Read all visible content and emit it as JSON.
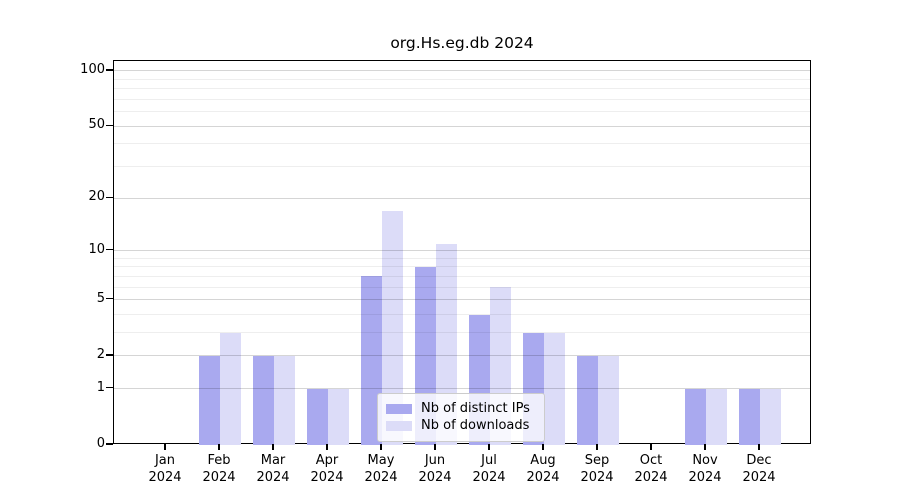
{
  "title": "org.Hs.eg.db 2024",
  "chart_data": {
    "type": "bar",
    "title": "org.Hs.eg.db 2024",
    "categories": [
      "Jan 2024",
      "Feb 2024",
      "Mar 2024",
      "Apr 2024",
      "May 2024",
      "Jun 2024",
      "Jul 2024",
      "Aug 2024",
      "Sep 2024",
      "Oct 2024",
      "Nov 2024",
      "Dec 2024"
    ],
    "series": [
      {
        "name": "Nb of distinct IPs",
        "color": "#a9a9ef",
        "values": [
          0,
          2,
          2,
          1,
          7,
          8,
          4,
          3,
          2,
          0,
          1,
          1
        ]
      },
      {
        "name": "Nb of downloads",
        "color": "#dcdcf8",
        "values": [
          0,
          3,
          2,
          1,
          17,
          11,
          6,
          3,
          2,
          0,
          1,
          1
        ]
      }
    ],
    "xlabel": "",
    "ylabel": "",
    "yscale": "log1p",
    "ylim": [
      0,
      113
    ],
    "yticks": [
      0,
      1,
      2,
      5,
      10,
      20,
      50,
      100
    ],
    "minor_gridlines": [
      3,
      4,
      6,
      7,
      8,
      9,
      30,
      40,
      60,
      70,
      80,
      90
    ],
    "grid": true,
    "legend_position": "inside-lower-center",
    "colors": {
      "frame": "#000000",
      "background": "#ffffff"
    }
  }
}
